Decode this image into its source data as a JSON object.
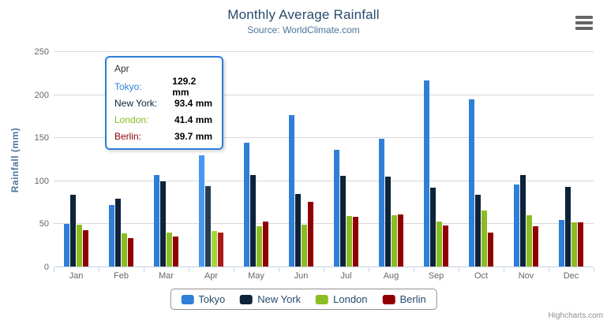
{
  "chart": {
    "title": "Monthly Average Rainfall",
    "subtitle": "Source: WorldClimate.com",
    "credits": "Highcharts.com",
    "background_color": "#ffffff",
    "axis_line_color": "#C0D0E0",
    "gridline_color": "#D8D8D8",
    "title_color": "#274b6d",
    "subtitle_color": "#4d759e"
  },
  "chart_data": {
    "type": "bar",
    "title": "Monthly Average Rainfall",
    "subtitle": "Source: WorldClimate.com",
    "categories": [
      "Jan",
      "Feb",
      "Mar",
      "Apr",
      "May",
      "Jun",
      "Jul",
      "Aug",
      "Sep",
      "Oct",
      "Nov",
      "Dec"
    ],
    "series": [
      {
        "name": "Tokyo",
        "color": "#2f7ed8",
        "hover_color": "#4897f1",
        "values": [
          49.9,
          71.5,
          106.4,
          129.2,
          144.0,
          176.0,
          135.6,
          148.5,
          216.4,
          194.1,
          95.6,
          54.4
        ]
      },
      {
        "name": "New York",
        "color": "#0d233a",
        "hover_color": "#263c53",
        "values": [
          83.6,
          78.8,
          98.5,
          93.4,
          106.0,
          84.5,
          105.0,
          104.3,
          91.2,
          83.5,
          106.6,
          92.3
        ]
      },
      {
        "name": "London",
        "color": "#8bbc21",
        "hover_color": "#a4d53a",
        "values": [
          48.9,
          38.8,
          39.3,
          41.4,
          47.0,
          48.3,
          59.0,
          59.6,
          52.4,
          65.2,
          59.3,
          51.2
        ]
      },
      {
        "name": "Berlin",
        "color": "#910000",
        "hover_color": "#aa1919",
        "values": [
          42.4,
          33.2,
          34.5,
          39.7,
          52.6,
          75.5,
          57.4,
          60.4,
          47.6,
          39.1,
          46.8,
          51.1
        ]
      }
    ],
    "xlabel": "",
    "ylabel": "Rainfall (mm)",
    "ylim": [
      0,
      250
    ],
    "yticks": [
      0,
      50,
      100,
      150,
      200,
      250
    ],
    "grid": true,
    "legend_position": "bottom",
    "hovered_category": "Apr"
  },
  "tooltip": {
    "header": "Apr",
    "border_color": "#2f7ed8",
    "rows": [
      {
        "name": "Tokyo:",
        "value": "129.2 mm"
      },
      {
        "name": "New York:",
        "value": "93.4 mm"
      },
      {
        "name": "London:",
        "value": "41.4 mm"
      },
      {
        "name": "Berlin:",
        "value": "39.7 mm"
      }
    ]
  },
  "export_menu": {
    "icon": "hamburger-menu-icon"
  }
}
